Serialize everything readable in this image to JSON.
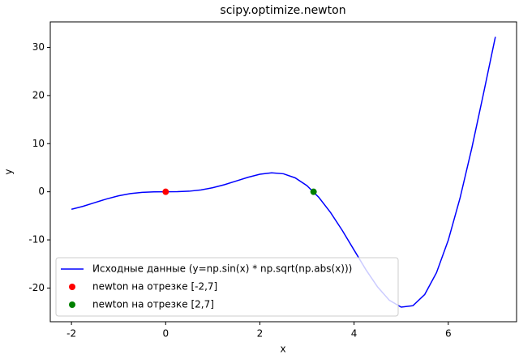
{
  "chart_data": {
    "type": "line",
    "title": "scipy.optimize.newton",
    "x_label": "x",
    "y_label": "y",
    "xlim": [
      -2.45,
      7.45
    ],
    "ylim": [
      -27.0,
      35.3
    ],
    "xticks": [
      -2,
      0,
      2,
      4,
      6
    ],
    "yticks": [
      -20,
      -10,
      0,
      10,
      20,
      30
    ],
    "legend": "lower left",
    "series": [
      {
        "name": "Исходные данные (y=np.sin(x) * np.sqrt(np.abs(x)))",
        "color": "#0000ff",
        "style": "line",
        "x": [
          -2,
          -1.75,
          -1.5,
          -1.25,
          -1,
          -0.75,
          -0.5,
          -0.25,
          0,
          0.25,
          0.5,
          0.75,
          1,
          1.25,
          1.5,
          1.75,
          2,
          2.25,
          2.5,
          2.75,
          3,
          3.25,
          3.5,
          3.75,
          4,
          4.25,
          4.5,
          4.75,
          5,
          5.25,
          5.5,
          5.75,
          6,
          6.25,
          6.5,
          6.75,
          7
        ],
        "values": [
          -3.64,
          -3.01,
          -2.24,
          -1.48,
          -0.84,
          -0.38,
          -0.12,
          -0.015,
          0,
          0.015,
          0.12,
          0.38,
          0.84,
          1.48,
          2.24,
          3.01,
          3.64,
          3.94,
          3.74,
          2.89,
          1.27,
          -1.14,
          -4.3,
          -8.04,
          -12.11,
          -16.17,
          -19.79,
          -22.55,
          -23.97,
          -23.67,
          -21.34,
          -16.81,
          -10.06,
          -1.3,
          9.09,
          20.5,
          32.19
        ]
      },
      {
        "name": "newton на отрезке [-2,7]",
        "color": "#ff0000",
        "style": "point",
        "x": [
          0
        ],
        "values": [
          0
        ]
      },
      {
        "name": "newton на отрезке [2,7]",
        "color": "#008000",
        "style": "point",
        "x": [
          3.14
        ],
        "values": [
          0
        ]
      }
    ]
  }
}
